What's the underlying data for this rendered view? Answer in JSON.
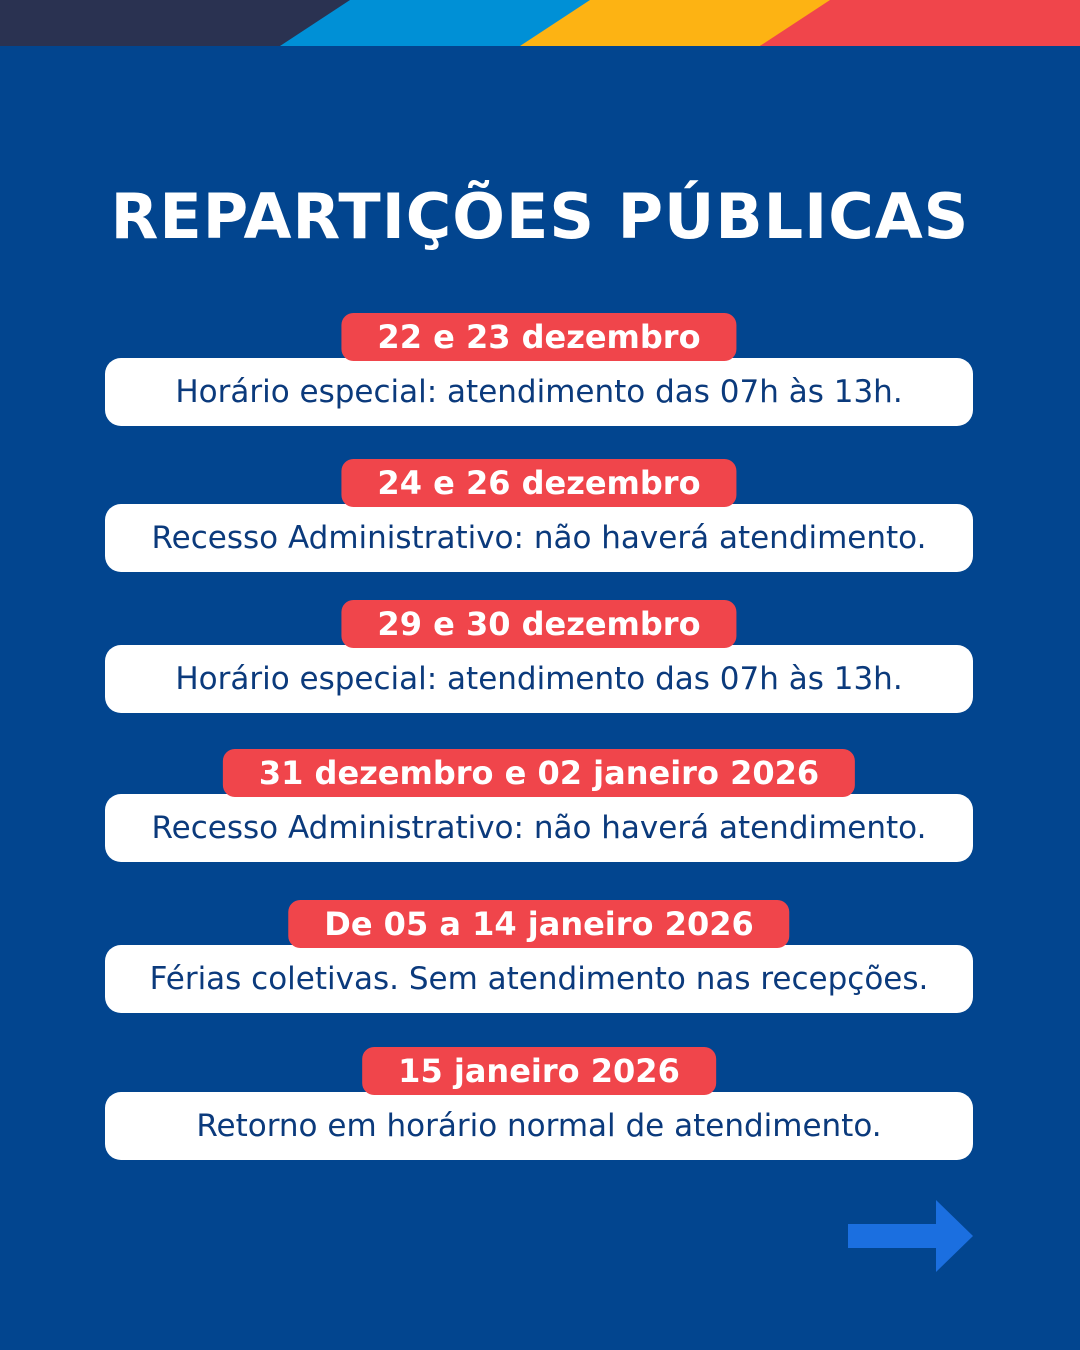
{
  "title": "REPARTIÇÕES PÚBLICAS",
  "items": [
    {
      "date": "22 e 23 dezembro",
      "text": "Horário especial: atendimento das 07h às 13h."
    },
    {
      "date": "24 e 26 dezembro",
      "text": "Recesso Administrativo: não haverá atendimento."
    },
    {
      "date": "29 e 30 dezembro",
      "text": "Horário especial: atendimento das 07h às 13h."
    },
    {
      "date": "31 dezembro e 02 janeiro 2026",
      "text": "Recesso Administrativo: não haverá atendimento."
    },
    {
      "date": "De 05 a 14 janeiro 2026",
      "text": "Férias coletivas. Sem atendimento nas recepções."
    },
    {
      "date": "15 janeiro 2026",
      "text": "Retorno em horário normal de atendimento."
    }
  ]
}
